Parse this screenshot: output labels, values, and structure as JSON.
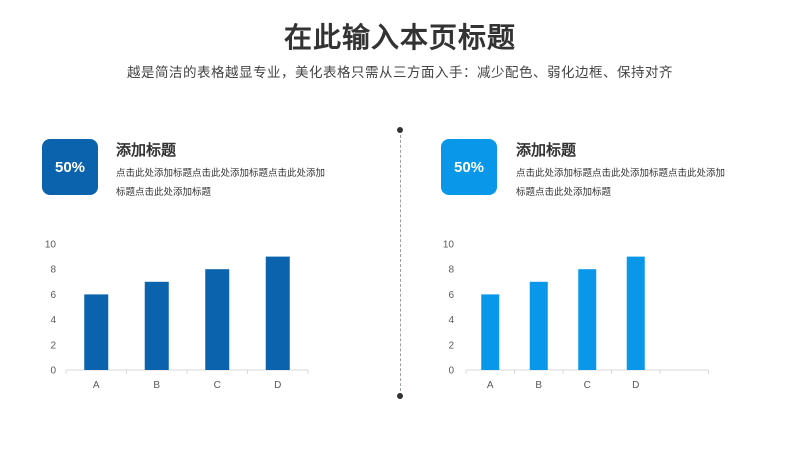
{
  "header": {
    "title": "在此输入本页标题",
    "subtitle": "越是简洁的表格越显专业，美化表格只需从三方面入手：减少配色、弱化边框、保持对齐"
  },
  "panels": [
    {
      "badge": "50%",
      "heading": "添加标题",
      "desc": "点击此处添加标题点击此处添加标题点击此处添加标题点击此处添加标题",
      "color": "#0b63ad"
    },
    {
      "badge": "50%",
      "heading": "添加标题",
      "desc": "点击此处添加标题点击此处添加标题点击此处添加标题点击此处添加标题",
      "color": "#0897e9"
    }
  ],
  "chart_data": [
    {
      "type": "bar",
      "categories": [
        "A",
        "B",
        "C",
        "D"
      ],
      "values": [
        6,
        7,
        8,
        9
      ],
      "ylim": [
        0,
        10
      ],
      "yticks": [
        0,
        2,
        4,
        6,
        8,
        10
      ],
      "grid": false,
      "color": "#0b63ad"
    },
    {
      "type": "bar",
      "categories": [
        "A",
        "B",
        "C",
        "D"
      ],
      "values": [
        6,
        7,
        8,
        9
      ],
      "ylim": [
        0,
        10
      ],
      "yticks": [
        0,
        2,
        4,
        6,
        8,
        10
      ],
      "grid": false,
      "color": "#0897e9"
    }
  ]
}
